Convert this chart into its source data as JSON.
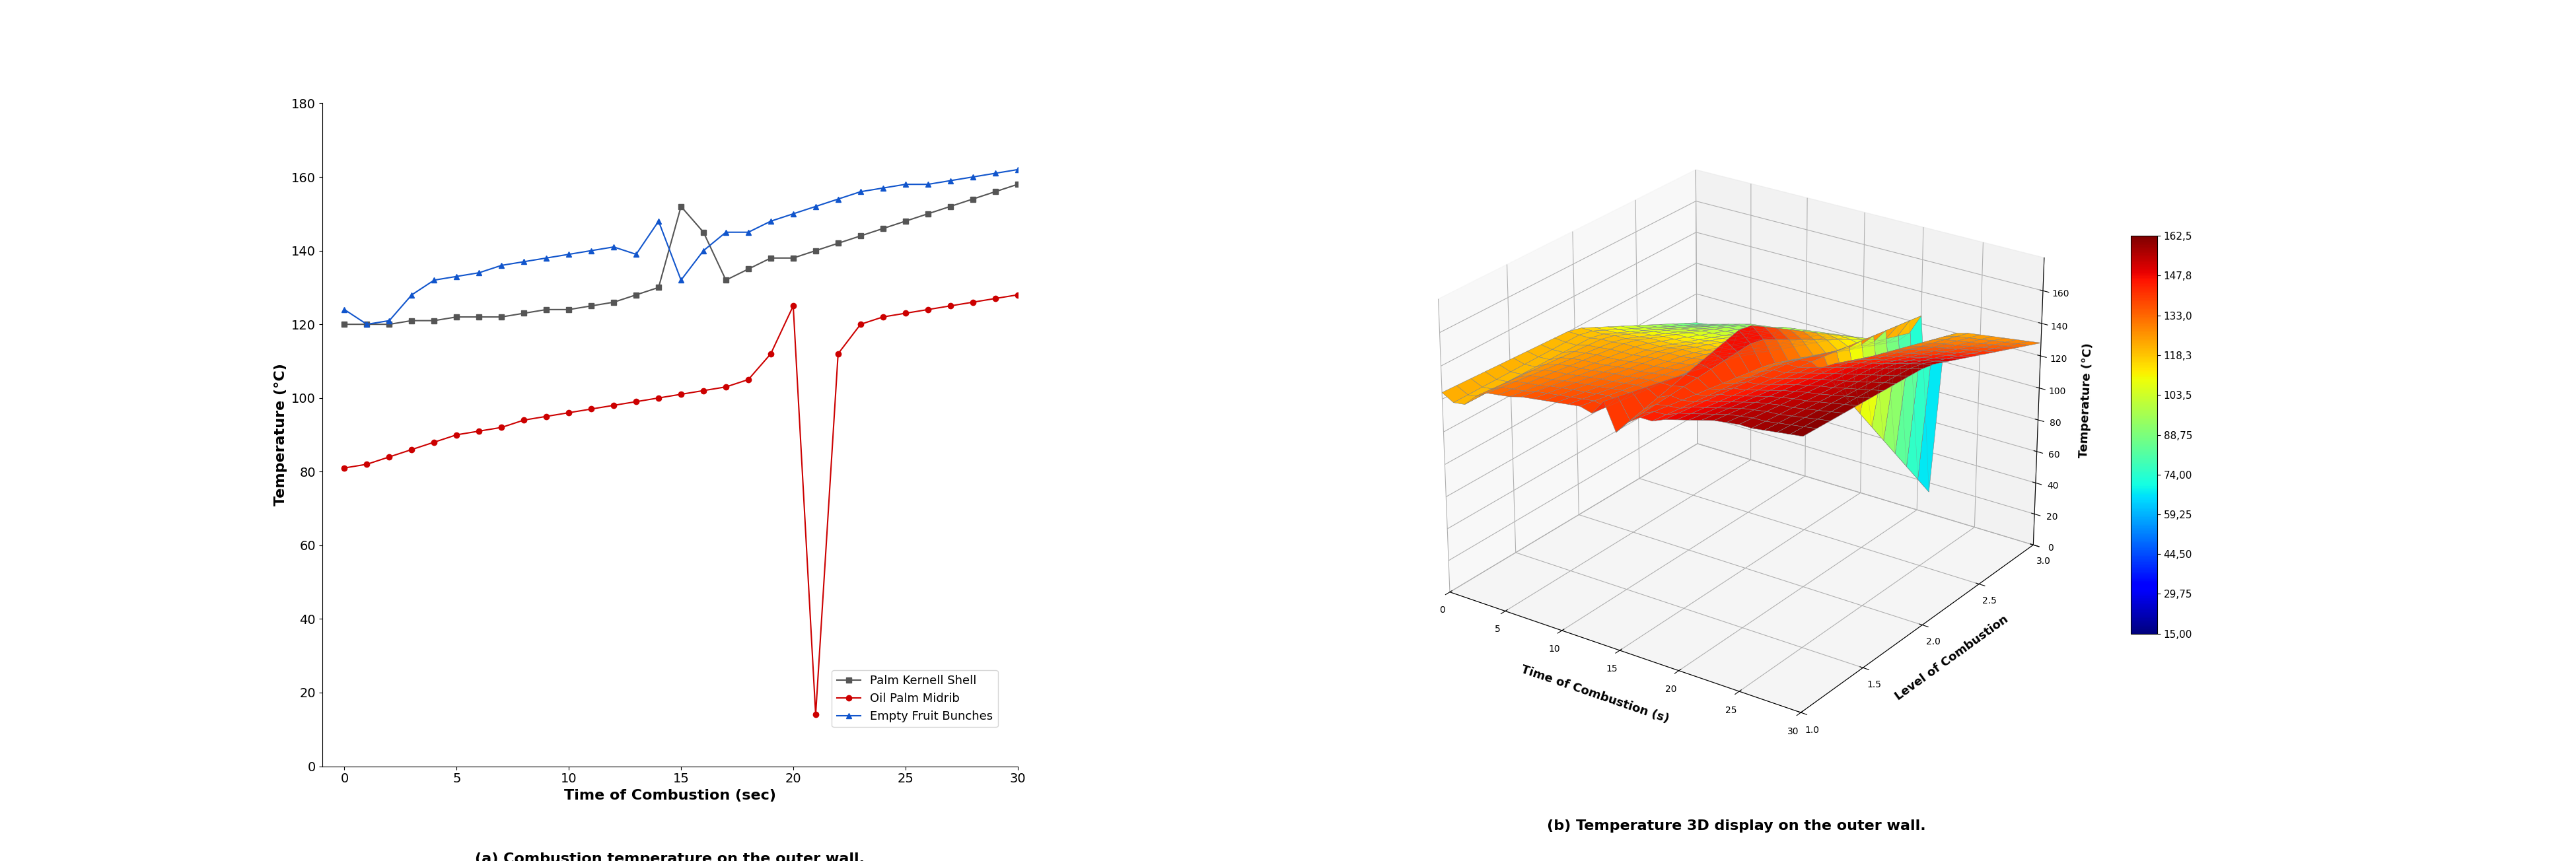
{
  "left_plot": {
    "title": "",
    "xlabel": "Time of Combustion (sec)",
    "ylabel": "Temperature (°C)",
    "ylim": [
      0,
      180
    ],
    "xlim": [
      -1,
      30
    ],
    "yticks": [
      0,
      20,
      40,
      60,
      80,
      100,
      120,
      140,
      160,
      180
    ],
    "xticks": [
      0,
      5,
      10,
      15,
      20,
      25,
      30
    ],
    "caption": "(a) Combustion temperature on the outer wall.",
    "series": {
      "palm_kernell": {
        "label": "Palm Kernell Shell",
        "color": "#555555",
        "marker": "s",
        "markersize": 6,
        "linewidth": 1.5
      },
      "oil_palm": {
        "label": "Oil Palm Midrib",
        "color": "#cc0000",
        "marker": "o",
        "markersize": 6,
        "linewidth": 1.5
      },
      "empty_fruit": {
        "label": "Empty Fruit Bunches",
        "color": "#1155cc",
        "marker": "^",
        "markersize": 6,
        "linewidth": 1.5
      }
    }
  },
  "right_plot": {
    "xlabel": "Time of Combustion (s)",
    "ylabel": "Temperature (°C)",
    "zlabel": "Level of Combustion",
    "caption": "(b) Temperature 3D display on the outer wall.",
    "colorbar_ticks": [
      15.0,
      29.75,
      44.5,
      59.25,
      74.0,
      88.75,
      103.5,
      118.3,
      133.0,
      147.8,
      162.5
    ],
    "colorbar_labels": [
      "15,00",
      "29,75",
      "44,50",
      "59,25",
      "74,00",
      "88,75",
      "103,5",
      "118,3",
      "133,0",
      "147,8",
      "162,5"
    ]
  },
  "palm_kernell_x": [
    0,
    1,
    2,
    3,
    4,
    5,
    6,
    7,
    8,
    9,
    10,
    11,
    12,
    13,
    14,
    15,
    16,
    17,
    18,
    19,
    20,
    21,
    22,
    23,
    24,
    25,
    26,
    27,
    28,
    29,
    30
  ],
  "palm_kernell_y": [
    120,
    120,
    120,
    121,
    121,
    122,
    122,
    122,
    123,
    124,
    124,
    125,
    126,
    128,
    130,
    152,
    145,
    132,
    135,
    138,
    138,
    140,
    142,
    144,
    146,
    148,
    150,
    152,
    154,
    156,
    158
  ],
  "oil_palm_x": [
    0,
    1,
    2,
    3,
    4,
    5,
    6,
    7,
    8,
    9,
    10,
    11,
    12,
    13,
    14,
    15,
    16,
    17,
    18,
    19,
    20,
    21,
    22,
    23,
    24,
    25,
    26,
    27,
    28,
    29,
    30
  ],
  "oil_palm_y": [
    81,
    82,
    84,
    86,
    88,
    90,
    91,
    92,
    94,
    95,
    96,
    97,
    98,
    99,
    100,
    101,
    102,
    103,
    105,
    112,
    125,
    14,
    112,
    120,
    122,
    123,
    124,
    125,
    126,
    127,
    128
  ],
  "empty_fruit_x": [
    0,
    1,
    2,
    3,
    4,
    5,
    6,
    7,
    8,
    9,
    10,
    11,
    12,
    13,
    14,
    15,
    16,
    17,
    18,
    19,
    20,
    21,
    22,
    23,
    24,
    25,
    26,
    27,
    28,
    29,
    30
  ],
  "empty_fruit_y": [
    124,
    120,
    121,
    128,
    132,
    133,
    134,
    136,
    137,
    138,
    139,
    140,
    141,
    139,
    148,
    132,
    140,
    145,
    145,
    148,
    150,
    152,
    154,
    156,
    157,
    158,
    158,
    159,
    160,
    161,
    162
  ]
}
